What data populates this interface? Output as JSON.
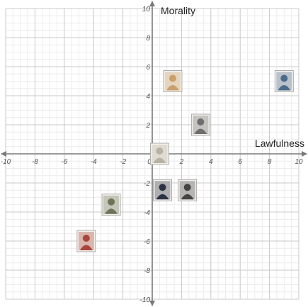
{
  "chart_data": {
    "type": "scatter",
    "xlabel": "Lawfulness",
    "ylabel": "Morality",
    "xlim": [
      -10,
      10
    ],
    "ylim": [
      -10,
      10
    ],
    "grid": true,
    "minor_grid": true,
    "tick_step": 2,
    "x_ticks": [
      "-10",
      "-8",
      "-6",
      "-4",
      "-2",
      "0",
      "2",
      "4",
      "6",
      "8",
      "10"
    ],
    "y_ticks": [
      "10",
      "8",
      "6",
      "4",
      "2",
      "-2",
      "-4",
      "-6",
      "-8",
      "-10"
    ],
    "colors": {
      "major_grid": "#c8c8c8",
      "minor_grid": "#ececec",
      "axis": "#7a7a7a"
    },
    "points": [
      {
        "x": 1.4,
        "y": 5.0,
        "image": "character-photo-sepia",
        "accent": "#c9a06a"
      },
      {
        "x": 9.0,
        "y": 5.0,
        "image": "character-photo-blue",
        "accent": "#4a6b8c"
      },
      {
        "x": 3.3,
        "y": 2.0,
        "image": "character-illustration-bw",
        "accent": "#6e6e6e"
      },
      {
        "x": 0.5,
        "y": 0.0,
        "image": "character-photo-white-robe",
        "accent": "#b9b2a4"
      },
      {
        "x": 0.7,
        "y": -2.5,
        "image": "character-photo-dark-blue",
        "accent": "#2d3346"
      },
      {
        "x": 2.4,
        "y": -2.5,
        "image": "character-sketch-bw",
        "accent": "#444444"
      },
      {
        "x": -2.8,
        "y": -3.5,
        "image": "character-photo-green",
        "accent": "#6d7458"
      },
      {
        "x": -4.5,
        "y": -6.0,
        "image": "character-photo-red",
        "accent": "#a8453c"
      }
    ]
  }
}
